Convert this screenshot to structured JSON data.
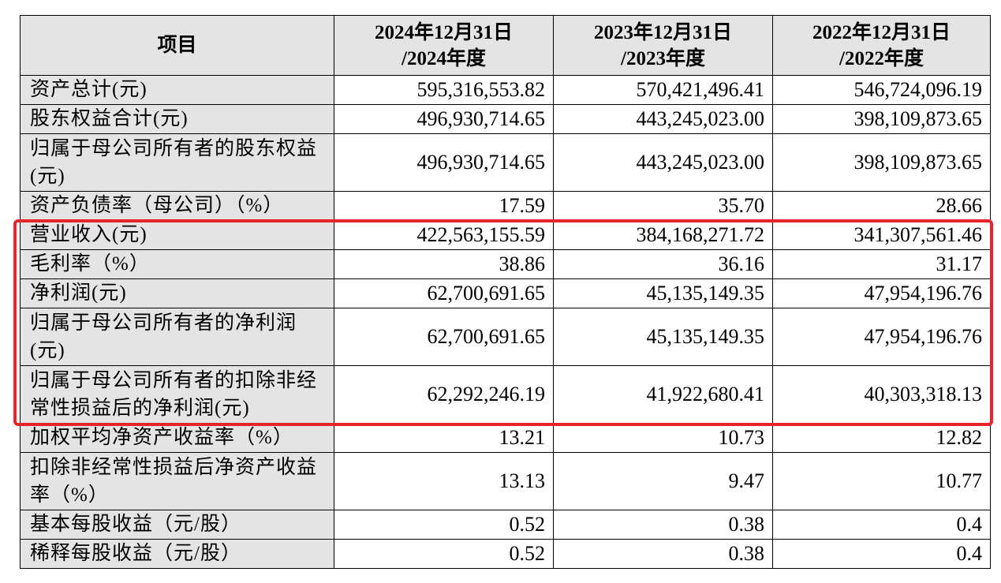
{
  "table": {
    "header": {
      "item": "项目",
      "columns": [
        {
          "line1": "2024年12月31日",
          "line2": "/2024年度"
        },
        {
          "line1": "2023年12月31日",
          "line2": "/2023年度"
        },
        {
          "line1": "2022年12月31日",
          "line2": "/2022年度"
        }
      ]
    },
    "rows": [
      {
        "label": "资产总计(元)",
        "values": [
          "595,316,553.82",
          "570,421,496.41",
          "546,724,096.19"
        ]
      },
      {
        "label": "股东权益合计(元)",
        "values": [
          "496,930,714.65",
          "443,245,023.00",
          "398,109,873.65"
        ]
      },
      {
        "label": "归属于母公司所有者的股东权益(元)",
        "values": [
          "496,930,714.65",
          "443,245,023.00",
          "398,109,873.65"
        ]
      },
      {
        "label": "资产负债率（母公司）（%）",
        "values": [
          "17.59",
          "35.70",
          "28.66"
        ]
      },
      {
        "label": "营业收入(元)",
        "values": [
          "422,563,155.59",
          "384,168,271.72",
          "341,307,561.46"
        ]
      },
      {
        "label": "毛利率（%）",
        "values": [
          "38.86",
          "36.16",
          "31.17"
        ]
      },
      {
        "label": "净利润(元)",
        "values": [
          "62,700,691.65",
          "45,135,149.35",
          "47,954,196.76"
        ]
      },
      {
        "label": "归属于母公司所有者的净利润(元)",
        "values": [
          "62,700,691.65",
          "45,135,149.35",
          "47,954,196.76"
        ]
      },
      {
        "label": "归属于母公司所有者的扣除非经常性损益后的净利润(元)",
        "values": [
          "62,292,246.19",
          "41,922,680.41",
          "40,303,318.13"
        ]
      },
      {
        "label": "加权平均净资产收益率（%）",
        "values": [
          "13.21",
          "10.73",
          "12.82"
        ]
      },
      {
        "label": "扣除非经常性损益后净资产收益率（%）",
        "values": [
          "13.13",
          "9.47",
          "10.77"
        ]
      },
      {
        "label": "基本每股收益（元/股）",
        "values": [
          "0.52",
          "0.38",
          "0.4"
        ]
      },
      {
        "label": "稀释每股收益（元/股）",
        "values": [
          "0.52",
          "0.38",
          "0.4"
        ]
      }
    ]
  },
  "highlight": {
    "color": "#e5242b",
    "rows": [
      4,
      5,
      6,
      7,
      8
    ]
  }
}
